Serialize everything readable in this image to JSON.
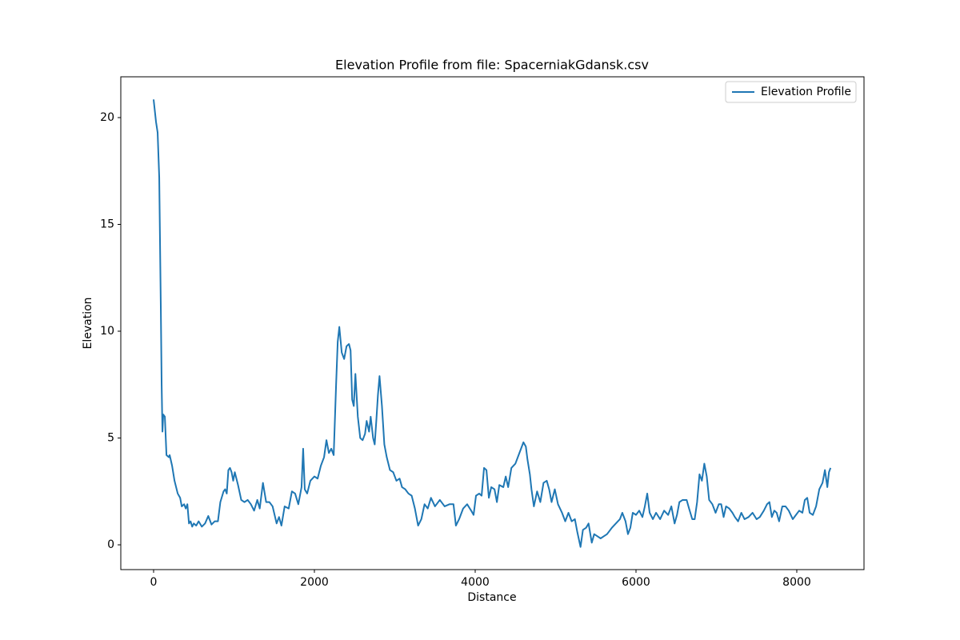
{
  "chart_data": {
    "type": "line",
    "title": "Elevation Profile from file: SpacerniakGdansk.csv",
    "x_label": "Distance",
    "y_label": "Elevation",
    "xlim": [
      -408,
      8836
    ],
    "ylim": [
      -1.16,
      21.91
    ],
    "xticks": [
      0,
      2000,
      4000,
      6000,
      8000
    ],
    "yticks": [
      0,
      5,
      10,
      15,
      20
    ],
    "legend": "upper right",
    "grid": false,
    "x": [
      0,
      30,
      50,
      70,
      90,
      100,
      110,
      120,
      140,
      160,
      190,
      200,
      230,
      260,
      300,
      330,
      350,
      380,
      400,
      420,
      440,
      460,
      480,
      500,
      530,
      560,
      600,
      640,
      680,
      720,
      760,
      800,
      830,
      870,
      890,
      910,
      930,
      950,
      970,
      990,
      1010,
      1050,
      1090,
      1130,
      1170,
      1210,
      1250,
      1290,
      1320,
      1360,
      1400,
      1440,
      1480,
      1530,
      1560,
      1590,
      1630,
      1680,
      1720,
      1760,
      1800,
      1840,
      1860,
      1880,
      1910,
      1950,
      2000,
      2040,
      2080,
      2120,
      2150,
      2180,
      2210,
      2240,
      2270,
      2290,
      2310,
      2340,
      2370,
      2400,
      2430,
      2450,
      2470,
      2490,
      2510,
      2540,
      2570,
      2600,
      2630,
      2650,
      2680,
      2700,
      2730,
      2750,
      2770,
      2790,
      2810,
      2840,
      2870,
      2900,
      2940,
      2980,
      3020,
      3060,
      3090,
      3130,
      3170,
      3210,
      3250,
      3290,
      3330,
      3370,
      3410,
      3450,
      3500,
      3560,
      3620,
      3680,
      3730,
      3760,
      3800,
      3850,
      3900,
      3950,
      3980,
      4010,
      4050,
      4080,
      4110,
      4140,
      4170,
      4200,
      4240,
      4270,
      4300,
      4350,
      4380,
      4410,
      4450,
      4500,
      4540,
      4570,
      4600,
      4630,
      4650,
      4680,
      4700,
      4730,
      4770,
      4810,
      4850,
      4890,
      4920,
      4950,
      4990,
      5030,
      5080,
      5120,
      5160,
      5200,
      5240,
      5270,
      5310,
      5340,
      5380,
      5410,
      5450,
      5480,
      5520,
      5560,
      5600,
      5640,
      5700,
      5750,
      5800,
      5830,
      5870,
      5900,
      5930,
      5960,
      6000,
      6040,
      6080,
      6110,
      6140,
      6170,
      6210,
      6250,
      6300,
      6350,
      6400,
      6440,
      6480,
      6510,
      6540,
      6580,
      6630,
      6660,
      6700,
      6730,
      6760,
      6790,
      6820,
      6850,
      6880,
      6910,
      6950,
      6990,
      7030,
      7060,
      7090,
      7120,
      7160,
      7200,
      7230,
      7270,
      7310,
      7350,
      7400,
      7450,
      7500,
      7540,
      7590,
      7630,
      7660,
      7690,
      7720,
      7750,
      7780,
      7820,
      7860,
      7900,
      7950,
      7990,
      8030,
      8070,
      8100,
      8130,
      8160,
      8200,
      8240,
      8280,
      8320,
      8350,
      8380,
      8400,
      8420
    ],
    "series": [
      {
        "name": "Elevation Profile",
        "color": "#1f77b4",
        "values": [
          20.85,
          19.8,
          19.3,
          17.2,
          11,
          7.5,
          5.3,
          6.1,
          6.0,
          4.2,
          4.1,
          4.2,
          3.7,
          3.0,
          2.4,
          2.2,
          1.8,
          1.9,
          1.7,
          1.9,
          1.0,
          1.1,
          0.85,
          1.0,
          0.9,
          1.1,
          0.85,
          1.0,
          1.35,
          0.95,
          1.1,
          1.1,
          2.0,
          2.5,
          2.6,
          2.4,
          3.5,
          3.6,
          3.4,
          3.0,
          3.4,
          2.8,
          2.1,
          2.0,
          2.1,
          1.9,
          1.6,
          2.1,
          1.7,
          2.9,
          2.0,
          2.0,
          1.8,
          1.0,
          1.3,
          0.9,
          1.8,
          1.7,
          2.5,
          2.4,
          1.9,
          2.7,
          4.5,
          2.6,
          2.4,
          3.0,
          3.2,
          3.1,
          3.7,
          4.1,
          4.9,
          4.3,
          4.5,
          4.2,
          7.5,
          9.5,
          10.2,
          9.0,
          8.7,
          9.3,
          9.4,
          9.1,
          6.8,
          6.5,
          8.0,
          6.0,
          5.0,
          4.9,
          5.2,
          5.8,
          5.3,
          6.0,
          5.0,
          4.7,
          5.8,
          7.0,
          7.9,
          6.5,
          4.7,
          4.1,
          3.5,
          3.4,
          3.0,
          3.1,
          2.7,
          2.6,
          2.4,
          2.3,
          1.7,
          0.9,
          1.2,
          1.9,
          1.7,
          2.2,
          1.8,
          2.1,
          1.8,
          1.9,
          1.9,
          0.9,
          1.2,
          1.7,
          1.9,
          1.6,
          1.4,
          2.3,
          2.4,
          2.3,
          3.6,
          3.5,
          2.2,
          2.7,
          2.6,
          2.0,
          2.8,
          2.7,
          3.2,
          2.7,
          3.6,
          3.8,
          4.2,
          4.5,
          4.8,
          4.6,
          4.0,
          3.3,
          2.6,
          1.8,
          2.5,
          2.0,
          2.9,
          3.0,
          2.6,
          2.0,
          2.6,
          1.9,
          1.5,
          1.1,
          1.5,
          1.1,
          1.2,
          0.6,
          -0.1,
          0.7,
          0.8,
          1.0,
          0.1,
          0.5,
          0.4,
          0.3,
          0.4,
          0.5,
          0.8,
          1.0,
          1.2,
          1.5,
          1.1,
          0.5,
          0.8,
          1.5,
          1.4,
          1.6,
          1.3,
          1.8,
          2.4,
          1.5,
          1.2,
          1.5,
          1.2,
          1.6,
          1.4,
          1.8,
          1.0,
          1.4,
          2.0,
          2.1,
          2.1,
          1.7,
          1.2,
          1.2,
          2.0,
          3.3,
          3.0,
          3.8,
          3.2,
          2.1,
          1.9,
          1.5,
          1.9,
          1.9,
          1.3,
          1.8,
          1.7,
          1.5,
          1.3,
          1.1,
          1.5,
          1.2,
          1.3,
          1.5,
          1.2,
          1.3,
          1.6,
          1.9,
          2.0,
          1.3,
          1.6,
          1.5,
          1.1,
          1.8,
          1.8,
          1.6,
          1.2,
          1.4,
          1.6,
          1.5,
          2.1,
          2.2,
          1.5,
          1.4,
          1.8,
          2.6,
          2.9,
          3.5,
          2.7,
          3.4,
          3.6
        ]
      }
    ]
  }
}
